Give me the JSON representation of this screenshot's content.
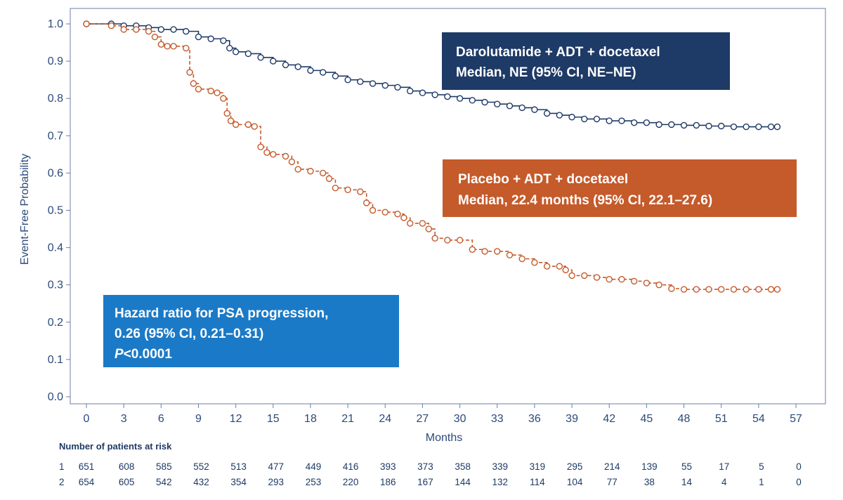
{
  "chart_data": {
    "type": "line",
    "subtype": "kaplan-meier",
    "xlabel": "Months",
    "ylabel": "Event-Free Probability",
    "xlim": [
      0,
      57
    ],
    "ylim": [
      0,
      1
    ],
    "x_ticks": [
      "0",
      "3",
      "6",
      "9",
      "12",
      "15",
      "18",
      "21",
      "24",
      "27",
      "30",
      "33",
      "36",
      "39",
      "42",
      "45",
      "48",
      "51",
      "54",
      "57"
    ],
    "y_ticks": [
      "0.0",
      "0.1",
      "0.2",
      "0.3",
      "0.4",
      "0.5",
      "0.6",
      "0.7",
      "0.8",
      "0.9",
      "1.0"
    ],
    "grid": false,
    "series": [
      {
        "key": "darolutamide",
        "color": "#1e3a66",
        "line_style": "solid",
        "x": [
          0,
          2,
          3,
          4,
          5,
          6,
          7,
          8,
          9,
          10,
          11,
          11.5,
          12,
          13,
          14,
          15,
          16,
          17,
          18,
          19,
          20,
          21,
          22,
          23,
          24,
          25,
          26,
          27,
          28,
          29,
          30,
          31,
          32,
          33,
          34,
          35,
          36,
          37,
          38,
          39,
          40,
          41,
          42,
          43,
          44,
          45,
          46,
          47,
          48,
          49,
          50,
          51,
          52,
          53,
          54,
          55,
          55.5
        ],
        "y": [
          1.0,
          1.0,
          0.995,
          0.995,
          0.99,
          0.985,
          0.985,
          0.98,
          0.965,
          0.96,
          0.955,
          0.935,
          0.925,
          0.92,
          0.91,
          0.9,
          0.89,
          0.885,
          0.875,
          0.87,
          0.86,
          0.85,
          0.845,
          0.84,
          0.835,
          0.83,
          0.82,
          0.815,
          0.81,
          0.805,
          0.8,
          0.795,
          0.79,
          0.785,
          0.78,
          0.775,
          0.77,
          0.76,
          0.755,
          0.75,
          0.745,
          0.745,
          0.74,
          0.74,
          0.735,
          0.735,
          0.73,
          0.73,
          0.728,
          0.728,
          0.726,
          0.726,
          0.724,
          0.724,
          0.724,
          0.724,
          0.724
        ]
      },
      {
        "key": "placebo",
        "color": "#c55a2a",
        "line_style": "dashed",
        "x": [
          0,
          2,
          3,
          4,
          5,
          5.5,
          6,
          6.5,
          7,
          8,
          8.3,
          8.6,
          9,
          10,
          10.5,
          11,
          11.3,
          11.6,
          12,
          13,
          13.5,
          14,
          14.5,
          15,
          16,
          16.5,
          17,
          18,
          19,
          19.5,
          20,
          21,
          22,
          22.5,
          23,
          24,
          25,
          25.5,
          26,
          27,
          27.5,
          28,
          29,
          30,
          31,
          32,
          33,
          34,
          35,
          36,
          37,
          38,
          38.5,
          39,
          40,
          41,
          42,
          43,
          44,
          45,
          46,
          47,
          48,
          49,
          50,
          51,
          52,
          53,
          54,
          55,
          55.5
        ],
        "y": [
          1.0,
          0.995,
          0.985,
          0.985,
          0.98,
          0.965,
          0.945,
          0.94,
          0.94,
          0.935,
          0.87,
          0.84,
          0.825,
          0.82,
          0.815,
          0.8,
          0.76,
          0.74,
          0.73,
          0.73,
          0.725,
          0.67,
          0.655,
          0.65,
          0.645,
          0.63,
          0.61,
          0.605,
          0.6,
          0.585,
          0.56,
          0.555,
          0.55,
          0.52,
          0.5,
          0.495,
          0.49,
          0.48,
          0.465,
          0.465,
          0.45,
          0.425,
          0.42,
          0.42,
          0.395,
          0.39,
          0.39,
          0.38,
          0.37,
          0.36,
          0.35,
          0.35,
          0.34,
          0.325,
          0.325,
          0.32,
          0.315,
          0.315,
          0.31,
          0.305,
          0.3,
          0.29,
          0.288,
          0.288,
          0.288,
          0.288,
          0.288,
          0.288,
          0.288,
          0.288,
          0.288
        ]
      }
    ],
    "annotations": [
      {
        "key": "dar_box",
        "lines": [
          "Darolutamide + ADT + docetaxel",
          "Median, NE (95% CI, NE–NE)"
        ],
        "color": "#1e3a66"
      },
      {
        "key": "pla_box",
        "lines": [
          "Placebo + ADT + docetaxel",
          "Median, 22.4 months (95% CI, 22.1–27.6)"
        ],
        "color": "#c55a2a"
      },
      {
        "key": "hr_box",
        "lines": [
          "Hazard ratio for PSA progression,",
          "0.26 (95% CI, 0.21–0.31)",
          "P<0.0001"
        ],
        "color": "#1b7ac7"
      }
    ],
    "risk_table": {
      "title": "Number of patients at risk",
      "rows": [
        {
          "label": "1",
          "values": [
            "651",
            "608",
            "585",
            "552",
            "513",
            "477",
            "449",
            "416",
            "393",
            "373",
            "358",
            "339",
            "319",
            "295",
            "214",
            "139",
            "55",
            "17",
            "5",
            "0"
          ]
        },
        {
          "label": "2",
          "values": [
            "654",
            "605",
            "542",
            "432",
            "354",
            "293",
            "253",
            "220",
            "186",
            "167",
            "144",
            "132",
            "114",
            "104",
            "77",
            "38",
            "14",
            "4",
            "1",
            "0"
          ]
        }
      ]
    }
  }
}
